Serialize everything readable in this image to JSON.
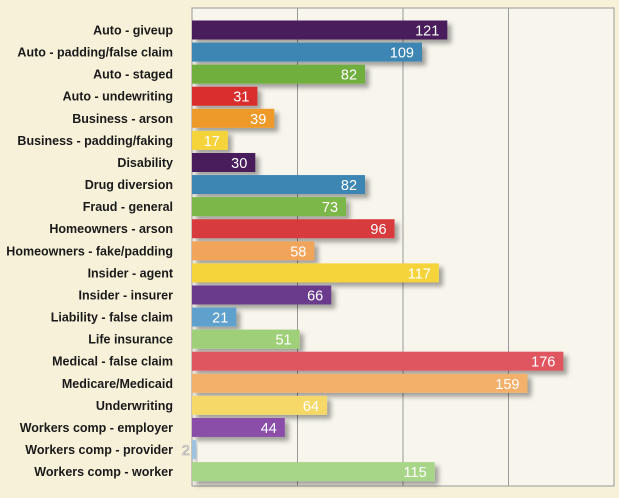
{
  "chart_data": {
    "type": "bar",
    "orientation": "horizontal",
    "title": "",
    "xlabel": "",
    "ylabel": "",
    "xlim": [
      0,
      200
    ],
    "grid": true,
    "categories": [
      "Auto - giveup",
      "Auto - padding/false claim",
      "Auto - staged",
      "Auto - undewriting",
      "Business - arson",
      "Business - padding/faking",
      "Disability",
      "Drug diversion",
      "Fraud - general",
      "Homeowners - arson",
      "Homeowners - fake/padding",
      "Insider - agent",
      "Insider - insurer",
      "Liability - false claim",
      "Life insurance",
      "Medical - false claim",
      "Medicare/Medicaid",
      "Underwriting",
      "Workers comp - employer",
      "Workers comp - provider",
      "Workers comp - worker"
    ],
    "values": [
      121,
      109,
      82,
      31,
      39,
      17,
      30,
      82,
      73,
      96,
      58,
      117,
      66,
      21,
      51,
      176,
      159,
      64,
      44,
      2,
      115
    ],
    "colors": [
      "#4a1f5c",
      "#3c86b4",
      "#6fae3c",
      "#d82f2f",
      "#ee9a2a",
      "#f5d33b",
      "#4a1f5c",
      "#3c86b4",
      "#7cb84a",
      "#d83a3c",
      "#f0a55a",
      "#f5d33b",
      "#6a3a8c",
      "#5ea0cc",
      "#9fcf78",
      "#df5560",
      "#f3b06a",
      "#f5d868",
      "#8a4ea8",
      "#9ec3e0",
      "#a8d688"
    ]
  }
}
